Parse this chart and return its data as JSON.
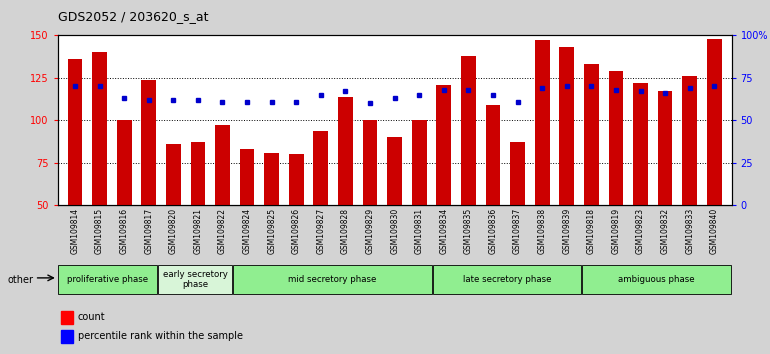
{
  "title": "GDS2052 / 203620_s_at",
  "samples": [
    "GSM109814",
    "GSM109815",
    "GSM109816",
    "GSM109817",
    "GSM109820",
    "GSM109821",
    "GSM109822",
    "GSM109824",
    "GSM109825",
    "GSM109826",
    "GSM109827",
    "GSM109828",
    "GSM109829",
    "GSM109830",
    "GSM109831",
    "GSM109834",
    "GSM109835",
    "GSM109836",
    "GSM109837",
    "GSM109838",
    "GSM109839",
    "GSM109818",
    "GSM109819",
    "GSM109823",
    "GSM109832",
    "GSM109833",
    "GSM109840"
  ],
  "counts": [
    136,
    140,
    100,
    124,
    86,
    87,
    97,
    83,
    81,
    80,
    94,
    114,
    100,
    90,
    100,
    121,
    138,
    109,
    87,
    147,
    143,
    133,
    129,
    122,
    117,
    126,
    148
  ],
  "percentile_ranks": [
    70,
    70,
    63,
    62,
    62,
    62,
    61,
    61,
    61,
    61,
    65,
    67,
    60,
    63,
    65,
    68,
    68,
    65,
    61,
    69,
    70,
    70,
    68,
    67,
    66,
    69,
    70
  ],
  "phases": [
    {
      "label": "proliferative phase",
      "start": 0,
      "end": 4,
      "color": "#90EE90",
      "light": false
    },
    {
      "label": "early secretory\nphase",
      "start": 4,
      "end": 7,
      "color": "#c8f0c8",
      "light": true
    },
    {
      "label": "mid secretory phase",
      "start": 7,
      "end": 15,
      "color": "#90EE90",
      "light": false
    },
    {
      "label": "late secretory phase",
      "start": 15,
      "end": 21,
      "color": "#90EE90",
      "light": false
    },
    {
      "label": "ambiguous phase",
      "start": 21,
      "end": 27,
      "color": "#90EE90",
      "light": false
    }
  ],
  "bar_color": "#cc0000",
  "dot_color": "#0000cc",
  "ylim_left": [
    50,
    150
  ],
  "ylim_right": [
    0,
    100
  ],
  "yticks_left": [
    50,
    75,
    100,
    125,
    150
  ],
  "yticks_right": [
    0,
    25,
    50,
    75,
    100
  ],
  "ytick_labels_right": [
    "0",
    "25",
    "50",
    "75",
    "100%"
  ],
  "grid_values": [
    75,
    100,
    125
  ],
  "bar_width": 0.6,
  "background_color": "#d3d3d3",
  "plot_bg_color": "#ffffff",
  "tick_area_color": "#c0c0c0"
}
